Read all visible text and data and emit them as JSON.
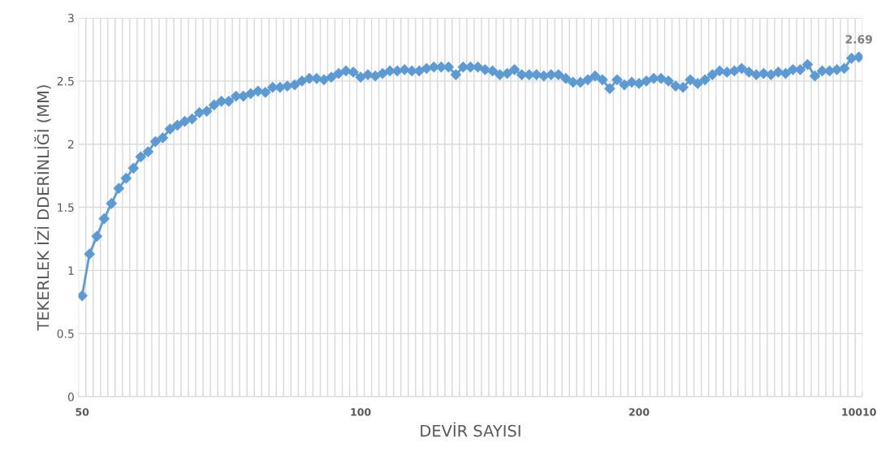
{
  "chart_data": {
    "type": "line",
    "xlabel": "DEVİR SAYISI",
    "ylabel": "TEKERLEK İZİ DDERİNLİĞİ (MM)",
    "categories": [
      "50",
      null,
      null,
      null,
      null,
      null,
      null,
      null,
      null,
      null,
      null,
      null,
      null,
      null,
      null,
      null,
      null,
      null,
      null,
      null,
      null,
      null,
      null,
      null,
      null,
      null,
      null,
      null,
      null,
      null,
      null,
      null,
      null,
      null,
      null,
      null,
      null,
      null,
      "100",
      null,
      null,
      null,
      null,
      null,
      null,
      null,
      null,
      null,
      null,
      null,
      null,
      null,
      null,
      null,
      null,
      null,
      null,
      null,
      null,
      null,
      null,
      null,
      null,
      null,
      null,
      null,
      null,
      null,
      null,
      null,
      null,
      null,
      null,
      null,
      null,
      null,
      "200",
      null,
      null,
      null,
      null,
      null,
      null,
      null,
      null,
      null,
      null,
      null,
      null,
      null,
      null,
      null,
      null,
      null,
      null,
      null,
      null,
      null,
      null,
      null,
      null,
      null,
      null,
      null,
      null,
      null,
      "10010"
    ],
    "series": [
      {
        "color": "#5b9bd5",
        "values": [
          0.8,
          1.13,
          1.27,
          1.41,
          1.53,
          1.65,
          1.73,
          1.81,
          1.9,
          1.94,
          2.02,
          2.05,
          2.12,
          2.15,
          2.18,
          2.2,
          2.25,
          2.26,
          2.31,
          2.34,
          2.34,
          2.38,
          2.38,
          2.4,
          2.42,
          2.41,
          2.45,
          2.45,
          2.46,
          2.47,
          2.5,
          2.52,
          2.52,
          2.51,
          2.53,
          2.56,
          2.58,
          2.57,
          2.53,
          2.55,
          2.54,
          2.56,
          2.58,
          2.58,
          2.59,
          2.58,
          2.58,
          2.6,
          2.61,
          2.61,
          2.61,
          2.55,
          2.61,
          2.61,
          2.61,
          2.59,
          2.58,
          2.55,
          2.56,
          2.59,
          2.55,
          2.55,
          2.55,
          2.54,
          2.55,
          2.55,
          2.52,
          2.49,
          2.49,
          2.51,
          2.54,
          2.51,
          2.44,
          2.51,
          2.47,
          2.49,
          2.48,
          2.5,
          2.52,
          2.52,
          2.5,
          2.46,
          2.45,
          2.51,
          2.48,
          2.51,
          2.55,
          2.58,
          2.57,
          2.58,
          2.6,
          2.57,
          2.55,
          2.56,
          2.55,
          2.57,
          2.56,
          2.59,
          2.59,
          2.63,
          2.54,
          2.58,
          2.58,
          2.59,
          2.6,
          2.68,
          2.69
        ],
        "value_labels": [
          null,
          null,
          null,
          null,
          null,
          null,
          null,
          null,
          null,
          null,
          null,
          null,
          null,
          null,
          null,
          null,
          null,
          null,
          null,
          null,
          null,
          null,
          null,
          null,
          null,
          null,
          null,
          null,
          null,
          null,
          null,
          null,
          null,
          null,
          null,
          null,
          null,
          null,
          null,
          null,
          null,
          null,
          null,
          null,
          null,
          null,
          null,
          null,
          null,
          null,
          null,
          null,
          null,
          null,
          null,
          null,
          null,
          null,
          null,
          null,
          null,
          null,
          null,
          null,
          null,
          null,
          null,
          null,
          null,
          null,
          null,
          null,
          null,
          null,
          null,
          null,
          null,
          null,
          null,
          null,
          null,
          null,
          null,
          null,
          null,
          null,
          null,
          null,
          null,
          null,
          null,
          null,
          null,
          null,
          null,
          null,
          null,
          null,
          null,
          null,
          null,
          null,
          null,
          null,
          null,
          null,
          "2.69"
        ]
      }
    ],
    "ylim": [
      0,
      3
    ],
    "yticks": [
      0,
      0.5,
      1,
      1.5,
      2,
      2.5,
      3
    ],
    "grid": true,
    "marker": "diamond",
    "line_style": "solid",
    "legend": false
  }
}
